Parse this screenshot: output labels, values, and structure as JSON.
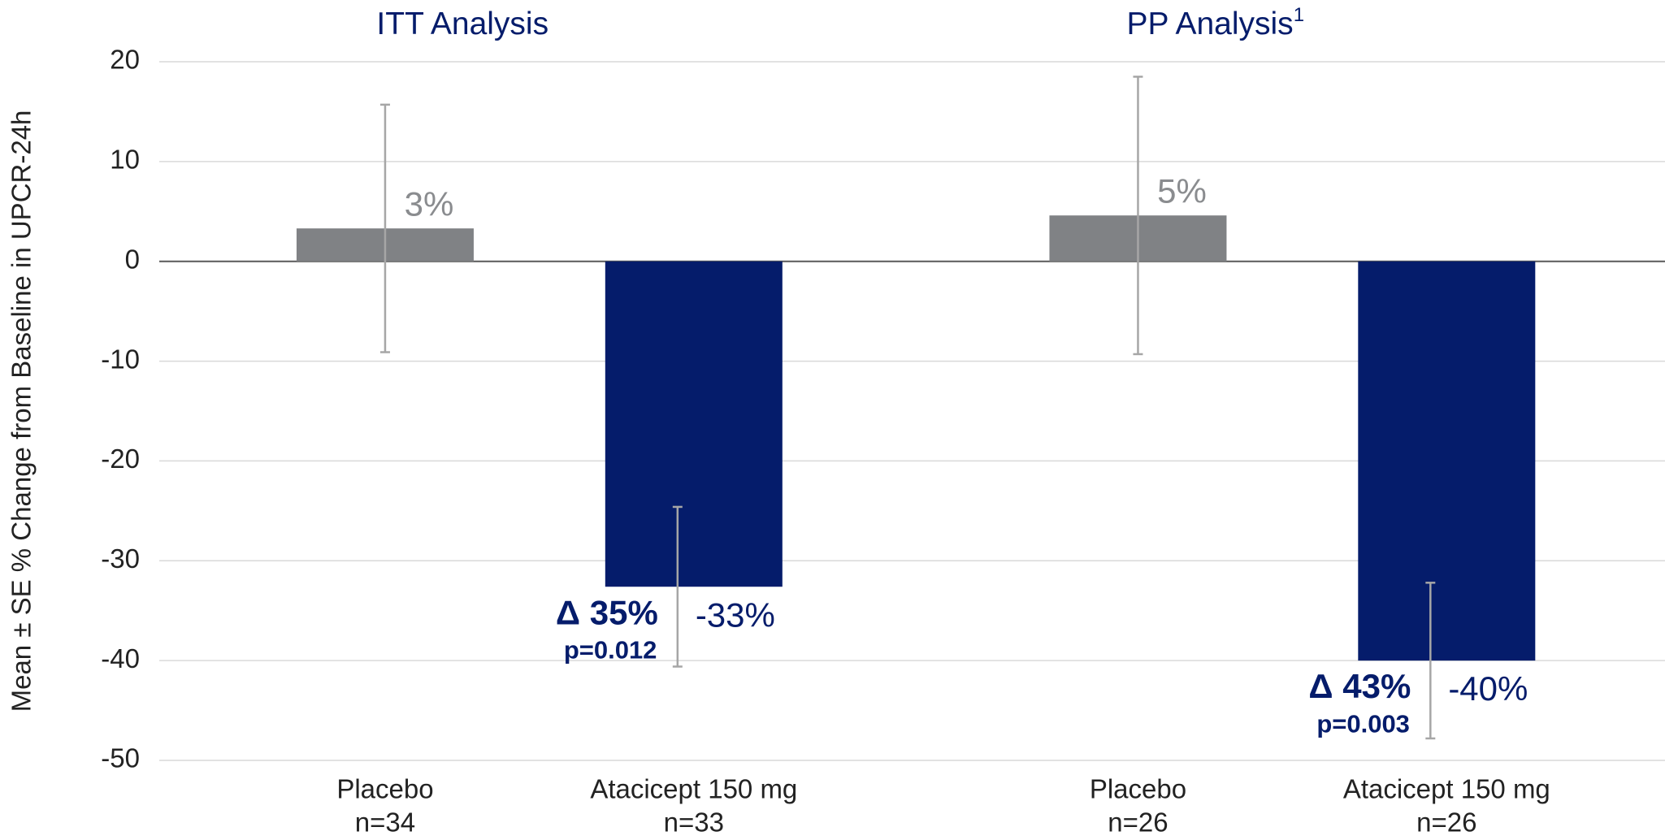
{
  "chart_data": {
    "type": "bar",
    "ylabel": "Mean ± SE % Change from Baseline in UPCR-24h",
    "group_titles": [
      {
        "text": "ITT Analysis"
      },
      {
        "text": "PP Analysis",
        "superscript": "1"
      }
    ],
    "categories": [
      "Placebo",
      "Atacicept 150 mg",
      "Placebo",
      "Atacicept 150 mg"
    ],
    "sample_sizes": [
      "n=34",
      "n=33",
      "n=26",
      "n=26"
    ],
    "values": [
      3.3,
      -32.6,
      4.6,
      -40
    ],
    "value_labels": [
      "3%",
      "-33%",
      "5%",
      "-40%"
    ],
    "errors": [
      12.4,
      8,
      13.9,
      7.8
    ],
    "colors": [
      "#808285",
      "#051c6b",
      "#808285",
      "#051c6b"
    ],
    "label_colors": [
      "#8a8c8f",
      "#051c6b",
      "#8a8c8f",
      "#051c6b"
    ],
    "deltas": [
      null,
      "Δ 35%",
      null,
      "Δ 43%"
    ],
    "p_values": [
      null,
      "p=0.012",
      null,
      "p=0.003"
    ],
    "ylim": [
      -50,
      20
    ],
    "yticks": [
      -50,
      -40,
      -30,
      -20,
      -10,
      0,
      10,
      20
    ],
    "grid": true
  }
}
